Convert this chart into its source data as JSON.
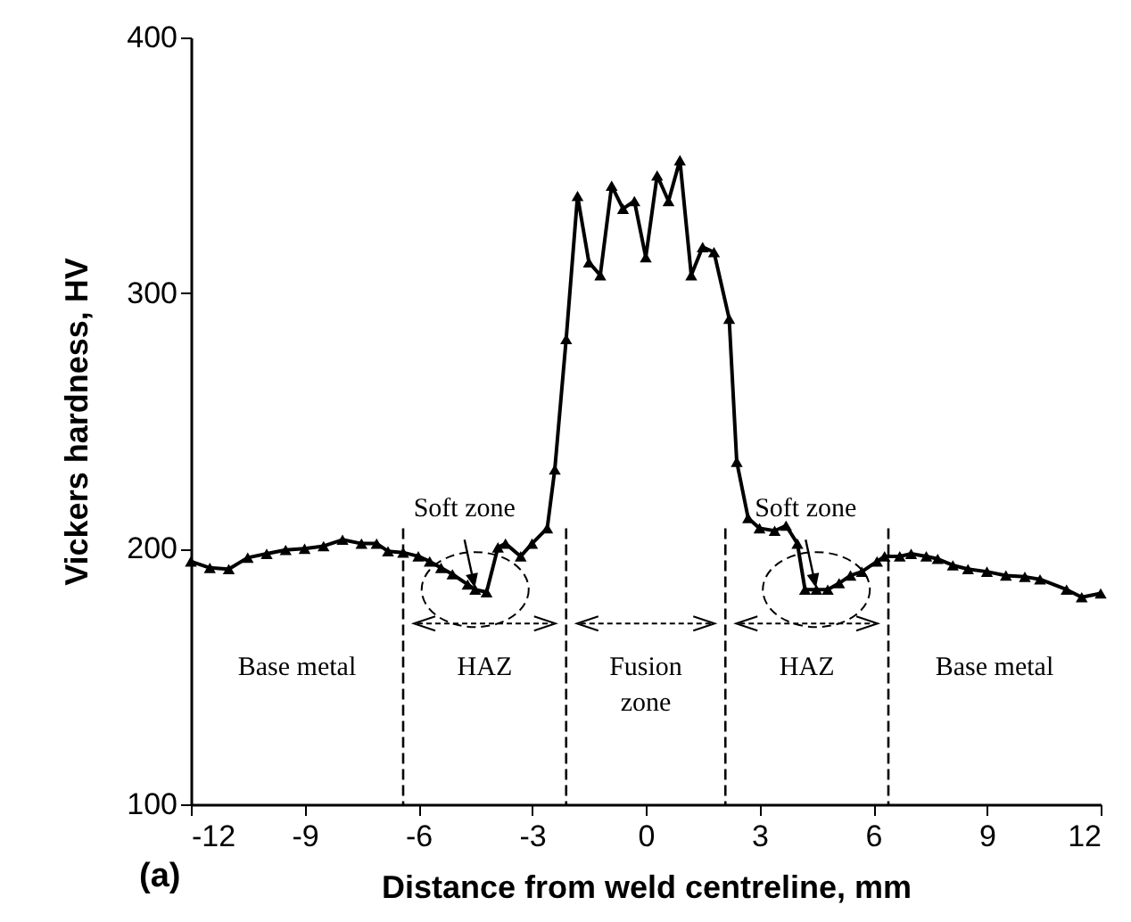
{
  "chart_data": {
    "type": "line",
    "xlabel": "Distance from weld centreline, mm",
    "ylabel": "Vickers hardness, HV",
    "x": [
      -12,
      -11.5,
      -11,
      -10.5,
      -10,
      -9.5,
      -9,
      -8.5,
      -8,
      -7.5,
      -7.1,
      -6.8,
      -6.4,
      -6,
      -5.7,
      -5.4,
      -5.1,
      -4.7,
      -4.5,
      -4.2,
      -3.9,
      -3.7,
      -3.3,
      -3,
      -2.6,
      -2.4,
      -2.1,
      -1.8,
      -1.5,
      -1.2,
      -0.9,
      -0.6,
      -0.3,
      0,
      0.3,
      0.6,
      0.9,
      1.2,
      1.5,
      1.8,
      2.2,
      2.4,
      2.7,
      3,
      3.4,
      3.7,
      4,
      4.2,
      4.5,
      4.8,
      5.1,
      5.4,
      5.7,
      6.1,
      6.3,
      6.7,
      7,
      7.4,
      7.7,
      8.1,
      8.5,
      9,
      9.5,
      10,
      10.4,
      11.1,
      11.5,
      12
    ],
    "series": [
      {
        "color": "#000000",
        "values": [
          195,
          192.5,
          192,
          196.5,
          198,
          199.5,
          200,
          201,
          203.5,
          202,
          202,
          199,
          198.5,
          197,
          195,
          192.5,
          190,
          186,
          184,
          183,
          200.5,
          202,
          197,
          202,
          208,
          231,
          282,
          338,
          312,
          307,
          342,
          333,
          336,
          314,
          346,
          336,
          352,
          307,
          318,
          316,
          290,
          234,
          212,
          208,
          207,
          209,
          202,
          184,
          184,
          184,
          186.5,
          189.5,
          191,
          195,
          197,
          197,
          198,
          197,
          196,
          193.5,
          192,
          191,
          189.5,
          189,
          188,
          184,
          181,
          182.5
        ]
      }
    ],
    "xlim": [
      -12,
      12
    ],
    "xticks": [
      -12,
      -9,
      -6,
      -3,
      0,
      3,
      6,
      9,
      12
    ],
    "ylim": [
      100,
      400
    ],
    "yticks": [
      100,
      200,
      300,
      400
    ],
    "marker": "triangle",
    "line_style": "solid",
    "grid": false,
    "ref_lines": [
      {
        "axis": "x",
        "value": -6.4,
        "line_style": "dashed"
      },
      {
        "axis": "x",
        "value": -2.1,
        "line_style": "dashed"
      },
      {
        "axis": "x",
        "value": 2.1,
        "line_style": "dashed"
      },
      {
        "axis": "x",
        "value": 6.4,
        "line_style": "dashed"
      }
    ],
    "annotations": [
      {
        "text": "Soft zone",
        "x": -4.5,
        "y": 184
      },
      {
        "text": "Soft zone",
        "x": 4.5,
        "y": 184
      },
      "Base metal",
      "HAZ",
      "Fusion zone",
      "HAZ",
      "Base metal",
      "(a)"
    ]
  }
}
